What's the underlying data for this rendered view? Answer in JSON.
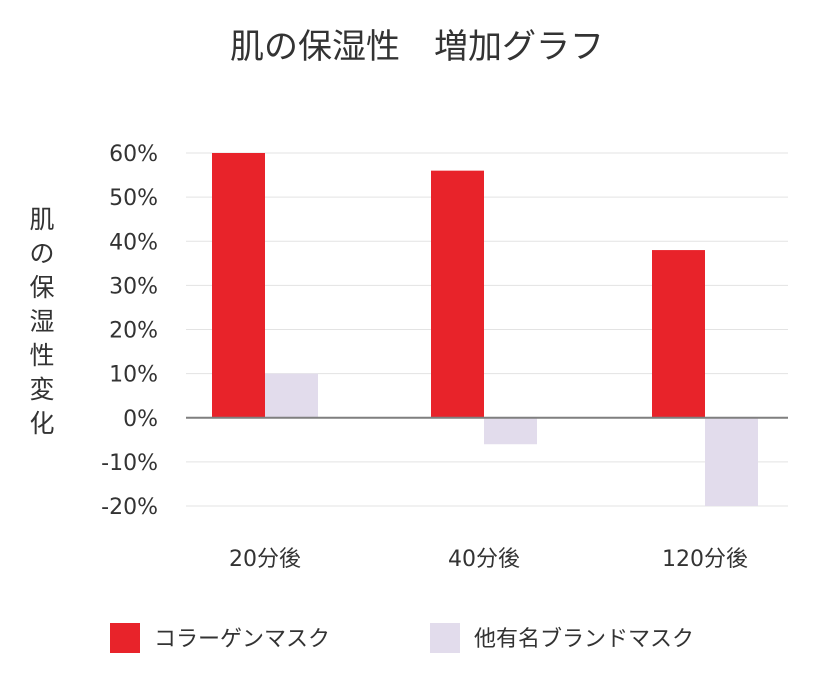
{
  "chart_data": {
    "type": "bar",
    "title": "肌の保湿性　増加グラフ",
    "ylabel": "肌の保湿性変化",
    "xlabel": "",
    "categories": [
      "20分後",
      "40分後",
      "120分後"
    ],
    "series": [
      {
        "name": "コラーゲンマスク",
        "values": [
          60,
          56,
          38
        ],
        "color": "#e8232a"
      },
      {
        "name": "他有名ブランドマスク",
        "values": [
          10,
          -6,
          -20
        ],
        "color": "#e2dcec"
      }
    ],
    "ylim": [
      -20,
      60
    ],
    "yticks": [
      "60%",
      "50%",
      "40%",
      "30%",
      "20%",
      "10%",
      "0%",
      "-10%",
      "-20%"
    ],
    "ytick_values": [
      60,
      50,
      40,
      30,
      20,
      10,
      0,
      -10,
      -20
    ],
    "grid": true,
    "legend_position": "bottom",
    "grid_color": "#e3e3e3",
    "axis_color": "#7f7f7f"
  }
}
